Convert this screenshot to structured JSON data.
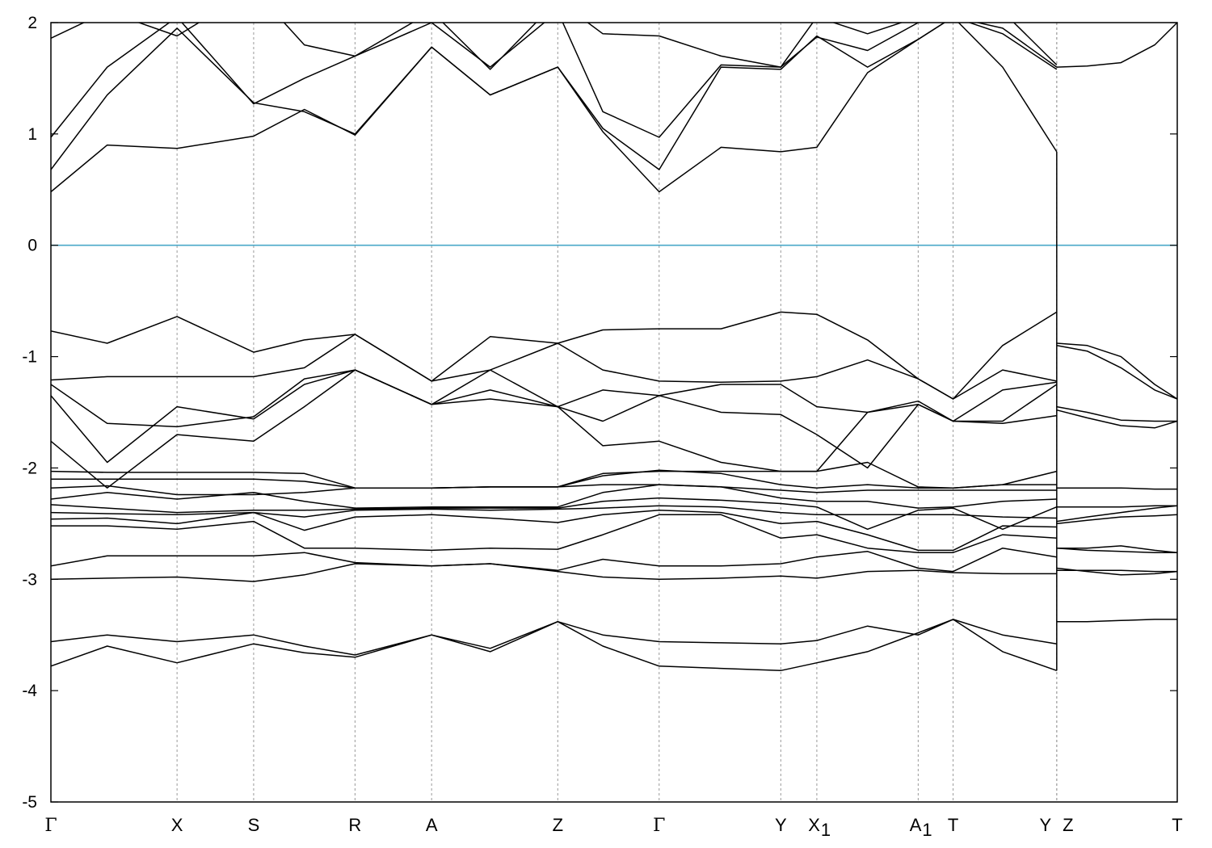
{
  "chart_data": {
    "type": "line",
    "title": "",
    "xlabel": "",
    "ylabel": "",
    "ylim": [
      -5,
      2
    ],
    "yticks": [
      2,
      1,
      0,
      -1,
      -2,
      -3,
      -4,
      -5
    ],
    "grid": "vertical dashed at high-symmetry points",
    "fermi_level": 0,
    "colors": {
      "bands": "#000000",
      "fermi": "#4aa8c8",
      "grid": "#9a9a9a",
      "frame": "#000000"
    },
    "kpoints": [
      {
        "label": "Γ",
        "sub": "",
        "x": 0
      },
      {
        "label": "X",
        "sub": "",
        "x": 1.12
      },
      {
        "label": "S",
        "sub": "",
        "x": 1.8
      },
      {
        "label": "R",
        "sub": "",
        "x": 2.7
      },
      {
        "label": "A",
        "sub": "",
        "x": 3.38
      },
      {
        "label": "Z",
        "sub": "",
        "x": 4.5
      },
      {
        "label": "Γ",
        "sub": "",
        "x": 5.4
      },
      {
        "label": "Y",
        "sub": "",
        "x": 6.48
      },
      {
        "label": "X",
        "sub": "1",
        "x": 6.8
      },
      {
        "label": "A",
        "sub": "1",
        "x": 7.7
      },
      {
        "label": "T",
        "sub": "",
        "x": 8.01
      },
      {
        "label": "Y",
        "sub": "",
        "x": 8.93
      },
      {
        "label": "Z",
        "sub": "",
        "x": 8.93
      },
      {
        "label": "T",
        "sub": "",
        "x": 10.0
      }
    ],
    "xlim": [
      0,
      10
    ],
    "segments": [
      {
        "name": "Γ–…–Y",
        "x": [
          0,
          0.5,
          1.12,
          1.8,
          2.25,
          2.7,
          3.38,
          3.9,
          4.5,
          4.9,
          5.4,
          5.95,
          6.48,
          6.8,
          7.25,
          7.7,
          8.01,
          8.45,
          8.93
        ],
        "bands": [
          [
            -3.78,
            -3.6,
            -3.75,
            -3.58,
            -3.66,
            -3.7,
            -3.5,
            -3.65,
            -3.38,
            -3.6,
            -3.78,
            -3.8,
            -3.82,
            -3.75,
            -3.65,
            -3.48,
            -3.36,
            -3.65,
            -3.82
          ],
          [
            -3.56,
            -3.5,
            -3.56,
            -3.5,
            -3.6,
            -3.68,
            -3.5,
            -3.62,
            -3.38,
            -3.5,
            -3.56,
            -3.57,
            -3.58,
            -3.55,
            -3.42,
            -3.5,
            -3.36,
            -3.5,
            -3.58
          ],
          [
            -3.0,
            -2.99,
            -2.98,
            -3.02,
            -2.96,
            -2.86,
            -2.88,
            -2.86,
            -2.93,
            -2.98,
            -3.0,
            -2.99,
            -2.97,
            -2.99,
            -2.93,
            -2.92,
            -2.94,
            -2.95,
            -2.95
          ],
          [
            -2.88,
            -2.79,
            -2.79,
            -2.79,
            -2.76,
            -2.85,
            -2.88,
            -2.86,
            -2.92,
            -2.82,
            -2.88,
            -2.88,
            -2.86,
            -2.8,
            -2.75,
            -2.9,
            -2.93,
            -2.72,
            -2.8
          ],
          [
            -2.52,
            -2.52,
            -2.55,
            -2.48,
            -2.72,
            -2.72,
            -2.74,
            -2.72,
            -2.73,
            -2.6,
            -2.42,
            -2.42,
            -2.63,
            -2.6,
            -2.72,
            -2.76,
            -2.76,
            -2.6,
            -2.63
          ],
          [
            -2.46,
            -2.45,
            -2.5,
            -2.4,
            -2.56,
            -2.44,
            -2.42,
            -2.45,
            -2.49,
            -2.42,
            -2.38,
            -2.4,
            -2.5,
            -2.48,
            -2.6,
            -2.74,
            -2.74,
            -2.52,
            -2.53
          ],
          [
            -2.4,
            -2.41,
            -2.42,
            -2.4,
            -2.44,
            -2.38,
            -2.37,
            -2.38,
            -2.37,
            -2.36,
            -2.34,
            -2.35,
            -2.4,
            -2.42,
            -2.42,
            -2.42,
            -2.42,
            -2.44,
            -2.45
          ],
          [
            -2.33,
            -2.36,
            -2.4,
            -2.38,
            -2.38,
            -2.37,
            -2.36,
            -2.36,
            -2.36,
            -2.3,
            -2.27,
            -2.29,
            -2.32,
            -2.35,
            -2.55,
            -2.38,
            -2.36,
            -2.55,
            -2.35
          ],
          [
            -2.28,
            -2.22,
            -2.28,
            -2.22,
            -2.3,
            -2.36,
            -2.35,
            -2.35,
            -2.35,
            -2.22,
            -2.15,
            -2.17,
            -2.27,
            -2.3,
            -2.3,
            -2.36,
            -2.35,
            -2.3,
            -2.28
          ],
          [
            -2.18,
            -2.16,
            -2.24,
            -2.24,
            -2.22,
            -2.18,
            -2.18,
            -2.17,
            -2.17,
            -2.15,
            -2.15,
            -2.17,
            -2.2,
            -2.22,
            -2.2,
            -2.2,
            -2.2,
            -2.2,
            -2.2
          ],
          [
            -2.1,
            -2.1,
            -2.1,
            -2.1,
            -2.12,
            -2.18,
            -2.18,
            -2.17,
            -2.17,
            -2.07,
            -2.02,
            -2.05,
            -2.15,
            -2.18,
            -2.15,
            -2.18,
            -2.18,
            -2.15,
            -2.15
          ],
          [
            -2.03,
            -2.04,
            -2.04,
            -2.04,
            -2.05,
            -2.18,
            -2.18,
            -2.17,
            -2.17,
            -2.05,
            -2.03,
            -2.03,
            -2.03,
            -2.03,
            -1.95,
            -2.17,
            -2.18,
            -2.15,
            -2.03
          ],
          [
            -1.76,
            -2.18,
            -1.7,
            -1.76,
            -1.45,
            -1.12,
            -1.43,
            -1.12,
            -1.45,
            -1.8,
            -1.76,
            -1.95,
            -2.03,
            -2.03,
            -1.5,
            -1.43,
            -1.58,
            -1.6,
            -1.53
          ],
          [
            -1.35,
            -1.95,
            -1.45,
            -1.56,
            -1.25,
            -1.12,
            -1.43,
            -1.38,
            -1.45,
            -1.58,
            -1.35,
            -1.5,
            -1.52,
            -1.7,
            -2.0,
            -1.43,
            -1.58,
            -1.58,
            -1.25
          ],
          [
            -1.25,
            -1.6,
            -1.63,
            -1.54,
            -1.2,
            -1.12,
            -1.43,
            -1.3,
            -1.45,
            -1.3,
            -1.35,
            -1.25,
            -1.25,
            -1.45,
            -1.5,
            -1.4,
            -1.58,
            -1.3,
            -1.23
          ],
          [
            -1.21,
            -1.18,
            -1.18,
            -1.18,
            -1.1,
            -0.8,
            -1.22,
            -1.12,
            -0.88,
            -1.12,
            -1.22,
            -1.23,
            -1.22,
            -1.18,
            -1.03,
            -1.2,
            -1.38,
            -1.12,
            -1.22
          ],
          [
            -0.77,
            -0.88,
            -0.64,
            -0.96,
            -0.85,
            -0.8,
            -1.22,
            -0.82,
            -0.88,
            -0.76,
            -0.75,
            -0.75,
            -0.6,
            -0.62,
            -0.85,
            -1.2,
            -1.38,
            -0.9,
            -0.6
          ],
          [
            0.48,
            0.9,
            0.87,
            0.98,
            1.22,
            0.99,
            1.78,
            1.35,
            1.6,
            1.02,
            0.48,
            0.88,
            0.84,
            0.88,
            1.55,
            1.85,
            2.05,
            1.6,
            0.84
          ],
          [
            0.68,
            1.35,
            1.95,
            1.28,
            1.2,
            1.0,
            1.78,
            1.35,
            1.6,
            1.05,
            0.68,
            1.6,
            1.58,
            1.88,
            1.6,
            1.85,
            2.05,
            1.9,
            1.58
          ],
          [
            0.97,
            1.6,
            2.05,
            1.27,
            1.5,
            1.7,
            2.0,
            1.6,
            2.1,
            1.2,
            0.97,
            1.62,
            1.6,
            1.87,
            1.75,
            2.0,
            2.05,
            1.95,
            1.6
          ],
          [
            1.86,
            2.1,
            1.88,
            2.3,
            1.8,
            1.7,
            2.1,
            1.58,
            2.2,
            1.9,
            1.88,
            1.7,
            1.6,
            2.05,
            1.9,
            2.05,
            2.05,
            2.1,
            1.62
          ]
        ]
      },
      {
        "name": "Z–T",
        "x": [
          8.93,
          9.2,
          9.5,
          9.8,
          10.0
        ],
        "bands": [
          [
            -3.38,
            -3.38,
            -3.37,
            -3.36,
            -3.36
          ],
          [
            -2.9,
            -2.93,
            -2.96,
            -2.95,
            -2.93
          ],
          [
            -2.92,
            -2.92,
            -2.92,
            -2.93,
            -2.93
          ],
          [
            -2.72,
            -2.74,
            -2.75,
            -2.76,
            -2.76
          ],
          [
            -2.72,
            -2.72,
            -2.7,
            -2.74,
            -2.76
          ],
          [
            -2.5,
            -2.47,
            -2.44,
            -2.43,
            -2.42
          ],
          [
            -2.48,
            -2.44,
            -2.4,
            -2.36,
            -2.34
          ],
          [
            -2.35,
            -2.35,
            -2.35,
            -2.34,
            -2.34
          ],
          [
            -2.18,
            -2.18,
            -2.18,
            -2.19,
            -2.19
          ],
          [
            -1.48,
            -1.55,
            -1.62,
            -1.64,
            -1.58
          ],
          [
            -1.45,
            -1.5,
            -1.57,
            -1.58,
            -1.58
          ],
          [
            -0.9,
            -0.95,
            -1.1,
            -1.3,
            -1.38
          ],
          [
            -0.88,
            -0.9,
            -1.0,
            -1.25,
            -1.38
          ],
          [
            1.6,
            1.61,
            1.64,
            1.8,
            2.0
          ]
        ]
      }
    ]
  }
}
